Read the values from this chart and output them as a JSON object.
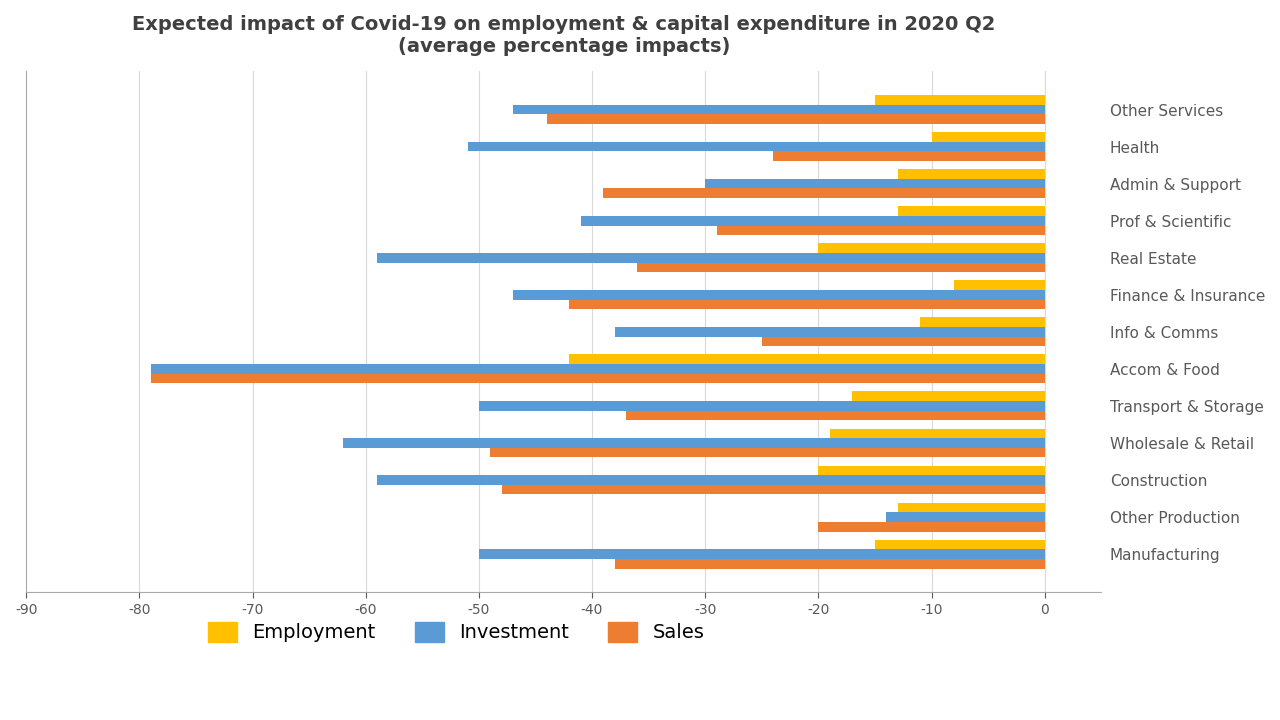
{
  "title": "Expected impact of Covid-19 on employment & capital expenditure in 2020 Q2\n(average percentage impacts)",
  "categories": [
    "Other Services",
    "Health",
    "Admin & Support",
    "Prof & Scientific",
    "Real Estate",
    "Finance & Insurance",
    "Info & Comms",
    "Accom & Food",
    "Transport & Storage",
    "Wholesale & Retail",
    "Construction",
    "Other Production",
    "Manufacturing"
  ],
  "employment": [
    -15,
    -10,
    -13,
    -13,
    -20,
    -8,
    -11,
    -42,
    -17,
    -19,
    -20,
    -13,
    -15
  ],
  "investment": [
    -47,
    -51,
    -30,
    -41,
    -59,
    -47,
    -38,
    -79,
    -50,
    -62,
    -59,
    -14,
    -50
  ],
  "sales": [
    -44,
    -24,
    -39,
    -29,
    -36,
    -42,
    -25,
    -79,
    -37,
    -49,
    -48,
    -20,
    -38
  ],
  "employment_color": "#FFC000",
  "investment_color": "#5B9BD5",
  "sales_color": "#ED7D31",
  "xlim": [
    -90,
    5
  ],
  "xticks": [
    -90,
    -80,
    -70,
    -60,
    -50,
    -40,
    -30,
    -20,
    -10,
    0
  ],
  "background_color": "#FFFFFF",
  "grid_color": "#D9D9D9",
  "title_fontsize": 14,
  "label_fontsize": 11,
  "tick_fontsize": 10
}
